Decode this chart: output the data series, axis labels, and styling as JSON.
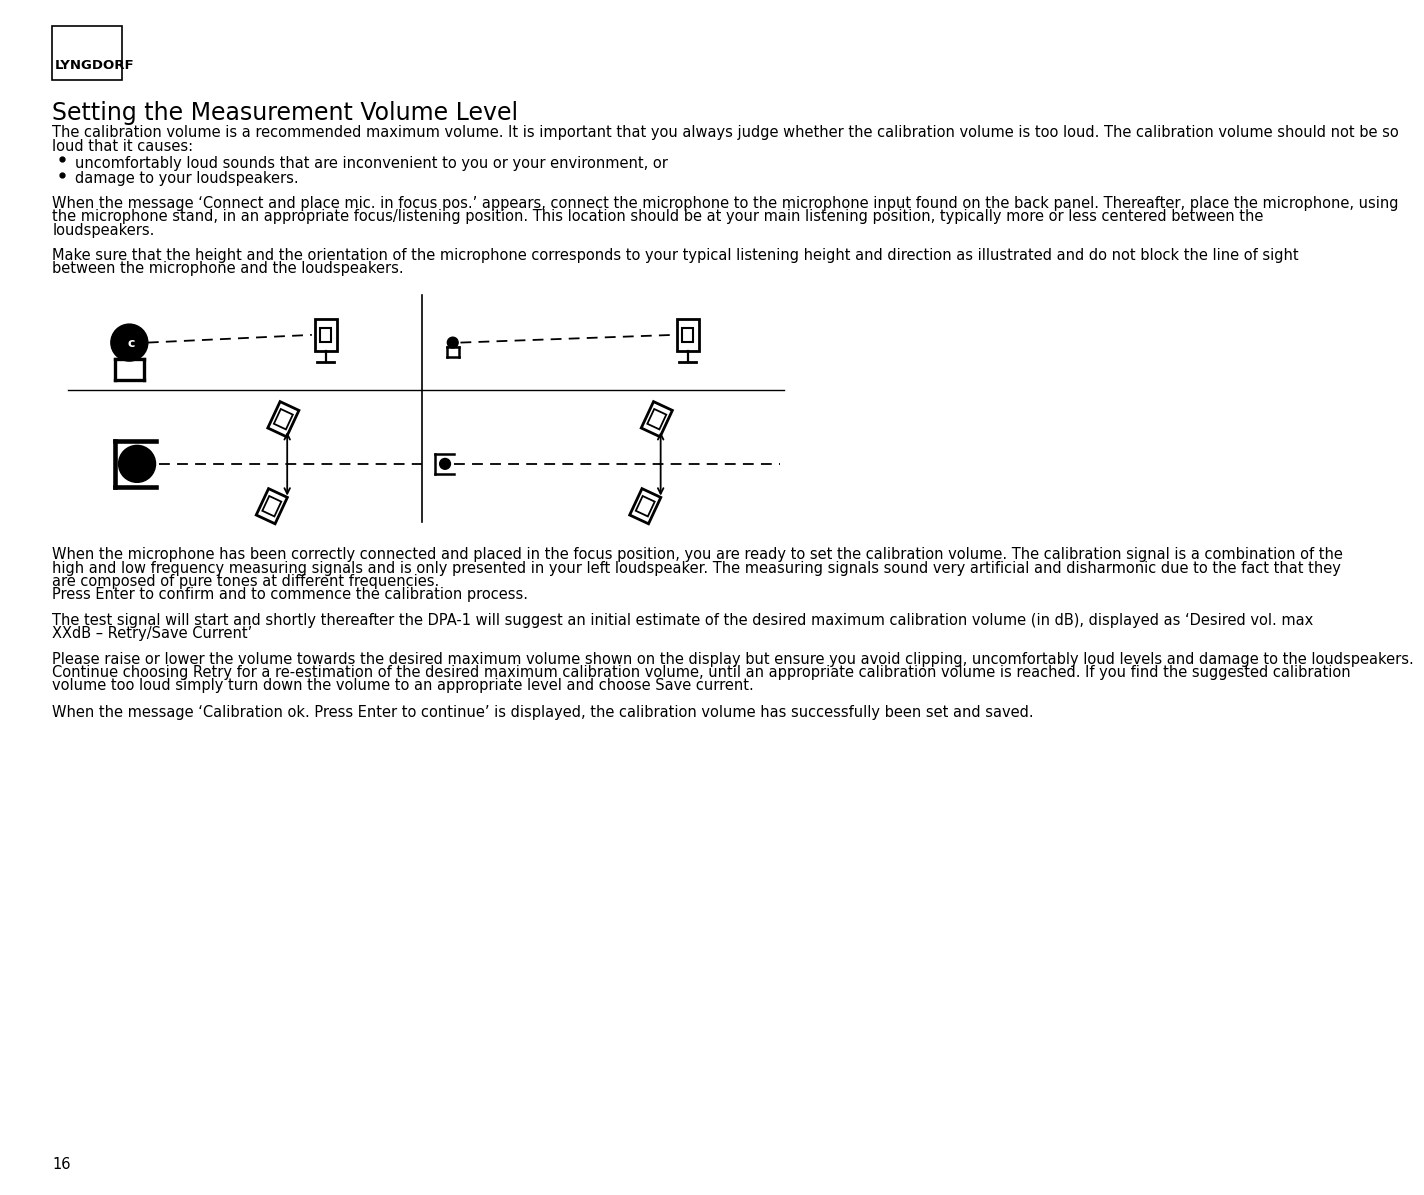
{
  "title": "Setting the Measurement Volume Level",
  "logo_text": "LYNGDORF",
  "body_text_1": "The calibration volume is a recommended maximum volume. It is important that you always judge whether the calibration volume is too loud. The calibration volume should not be so loud that it causes:",
  "bullet_1": "uncomfortably loud sounds that are inconvenient to you or your environment, or",
  "bullet_2": "damage to your loudspeakers.",
  "body_text_2": "When the message ‘Connect and place mic. in focus pos.’ appears, connect the microphone to the microphone input found on the back panel. Thereafter, place the microphone, using the microphone stand, in an appropriate focus/listening position. This location should be at your main listening position, typically more or less centered between the loudspeakers.",
  "body_text_3": "Make sure that the height and the orientation of the microphone corresponds to your typical listening height and direction as illustrated and do not block the line of sight between the microphone and the loudspeakers.",
  "body_text_4": "When the microphone has been correctly connected and placed in the focus position, you are ready to set the calibration volume. The calibration signal is a combination of the high and low frequency measuring signals and is only presented in your left loudspeaker. The measuring signals sound very artificial and disharmonic due to the fact that they are composed of pure tones at different frequencies.\nPress Enter to confirm and to commence the calibration process.",
  "body_text_5": "The test signal will start and shortly thereafter the DPA-1 will suggest an initial estimate of the desired maximum calibration volume (in dB), displayed as ‘Desired vol. max XXdB – Retry/Save Current’",
  "body_text_6": "Please raise or lower the volume towards the desired maximum volume shown on the display but ensure you avoid clipping, uncomfortably loud levels and damage to the loudspeakers. Continue choosing Retry for a re-estimation of the desired maximum calibration volume, until an appropriate calibration volume is reached. If you find the suggested calibration volume too loud simply turn down the volume to an appropriate level and choose Save current.",
  "body_text_7": "When the message ‘Calibration ok. Press Enter to continue’ is displayed, the calibration volume has successfully been set and saved.",
  "page_number": "16",
  "bg_color": "#ffffff",
  "text_color": "#000000",
  "line_color": "#000000"
}
